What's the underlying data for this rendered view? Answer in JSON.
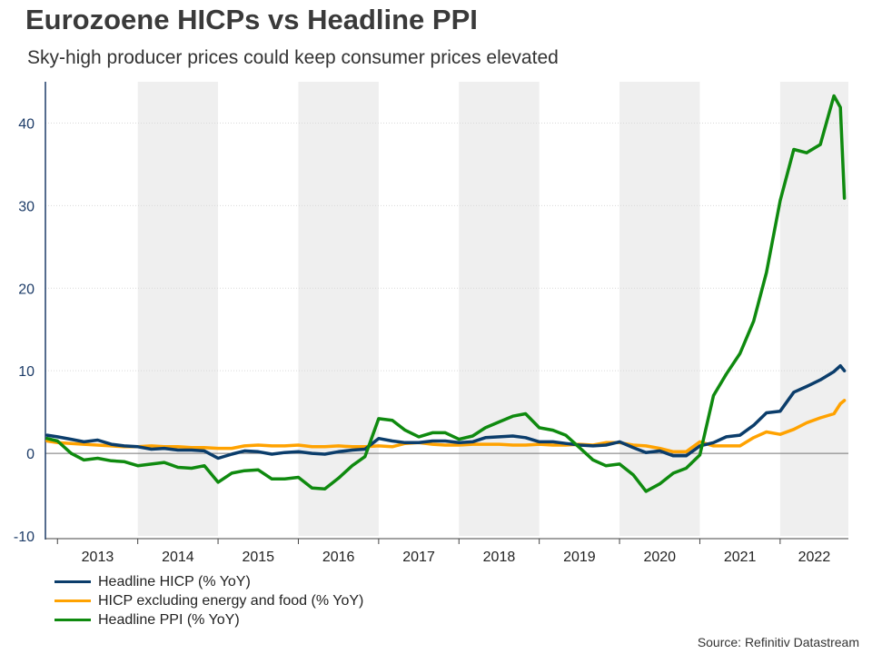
{
  "header": {
    "title": "Eurozoene HICPs vs Headline PPI",
    "subtitle": "Sky-high producer prices could keep consumer prices elevated"
  },
  "source": "Source: Refinitiv Datastream",
  "colors": {
    "headline_hicp": "#0b3d6b",
    "core_hicp": "#ffa200",
    "ppi": "#0f8a0f",
    "band": "#efefef",
    "axis_text": "#1d3c68",
    "grid": "#d9d9d9"
  },
  "chart_data": {
    "type": "line",
    "title": "Eurozoene HICPs vs Headline PPI",
    "xlabel": "",
    "ylabel": "",
    "x_range": [
      2012.85,
      2022.85
    ],
    "ylim": [
      -10,
      45
    ],
    "yticks": [
      -10,
      0,
      10,
      20,
      30,
      40
    ],
    "ytick_labels": [
      "-10",
      "0",
      "10",
      "20",
      "30",
      "40"
    ],
    "year_labels": [
      "2013",
      "2014",
      "2015",
      "2016",
      "2017",
      "2018",
      "2019",
      "2020",
      "2021",
      "2022"
    ],
    "shaded_years": [
      2014,
      2016,
      2018,
      2020,
      2022
    ],
    "grid": true,
    "legend_position": "bottom-left",
    "series": [
      {
        "name": "Headline HICP (% YoY)",
        "key": "headline_hicp",
        "x": [
          2012.87,
          2013.0,
          2013.17,
          2013.33,
          2013.5,
          2013.67,
          2013.83,
          2014.0,
          2014.17,
          2014.33,
          2014.5,
          2014.67,
          2014.83,
          2015.0,
          2015.17,
          2015.33,
          2015.5,
          2015.67,
          2015.83,
          2016.0,
          2016.17,
          2016.33,
          2016.5,
          2016.67,
          2016.83,
          2017.0,
          2017.17,
          2017.33,
          2017.5,
          2017.67,
          2017.83,
          2018.0,
          2018.17,
          2018.33,
          2018.5,
          2018.67,
          2018.83,
          2019.0,
          2019.17,
          2019.33,
          2019.5,
          2019.67,
          2019.83,
          2020.0,
          2020.17,
          2020.33,
          2020.5,
          2020.67,
          2020.83,
          2021.0,
          2021.17,
          2021.33,
          2021.5,
          2021.67,
          2021.83,
          2022.0,
          2022.17,
          2022.33,
          2022.5,
          2022.67,
          2022.75,
          2022.8
        ],
        "values": [
          2.2,
          2.0,
          1.7,
          1.4,
          1.6,
          1.1,
          0.9,
          0.8,
          0.5,
          0.6,
          0.4,
          0.4,
          0.3,
          -0.6,
          -0.1,
          0.3,
          0.2,
          -0.1,
          0.1,
          0.2,
          0.0,
          -0.1,
          0.2,
          0.4,
          0.5,
          1.8,
          1.5,
          1.3,
          1.3,
          1.5,
          1.5,
          1.3,
          1.4,
          1.9,
          2.0,
          2.1,
          1.9,
          1.4,
          1.4,
          1.2,
          1.0,
          0.9,
          1.0,
          1.4,
          0.7,
          0.1,
          0.3,
          -0.3,
          -0.3,
          0.9,
          1.3,
          2.0,
          2.2,
          3.4,
          4.9,
          5.1,
          7.4,
          8.1,
          8.9,
          9.9,
          10.6,
          10.0
        ]
      },
      {
        "name": "HICP excluding energy and food (% YoY)",
        "key": "core_hicp",
        "x": [
          2012.87,
          2013.0,
          2013.17,
          2013.33,
          2013.5,
          2013.67,
          2013.83,
          2014.0,
          2014.17,
          2014.33,
          2014.5,
          2014.67,
          2014.83,
          2015.0,
          2015.17,
          2015.33,
          2015.5,
          2015.67,
          2015.83,
          2016.0,
          2016.17,
          2016.33,
          2016.5,
          2016.67,
          2016.83,
          2017.0,
          2017.17,
          2017.33,
          2017.5,
          2017.67,
          2017.83,
          2018.0,
          2018.17,
          2018.33,
          2018.5,
          2018.67,
          2018.83,
          2019.0,
          2019.17,
          2019.33,
          2019.5,
          2019.67,
          2019.83,
          2020.0,
          2020.17,
          2020.33,
          2020.5,
          2020.67,
          2020.83,
          2021.0,
          2021.17,
          2021.33,
          2021.5,
          2021.67,
          2021.83,
          2022.0,
          2022.17,
          2022.33,
          2022.5,
          2022.67,
          2022.75,
          2022.8
        ],
        "values": [
          1.5,
          1.3,
          1.2,
          1.1,
          1.0,
          0.9,
          0.8,
          0.8,
          0.9,
          0.8,
          0.8,
          0.7,
          0.7,
          0.6,
          0.6,
          0.9,
          1.0,
          0.9,
          0.9,
          1.0,
          0.8,
          0.8,
          0.9,
          0.8,
          0.8,
          0.9,
          0.8,
          1.2,
          1.3,
          1.1,
          1.0,
          1.0,
          1.1,
          1.1,
          1.1,
          1.0,
          1.0,
          1.1,
          1.0,
          1.0,
          1.1,
          1.0,
          1.3,
          1.3,
          1.0,
          0.9,
          0.6,
          0.2,
          0.2,
          1.4,
          0.9,
          0.9,
          0.9,
          1.9,
          2.6,
          2.3,
          2.9,
          3.7,
          4.3,
          4.8,
          6.0,
          6.4
        ]
      },
      {
        "name": "Headline PPI (% YoY)",
        "key": "ppi",
        "x": [
          2012.87,
          2013.0,
          2013.17,
          2013.33,
          2013.5,
          2013.67,
          2013.83,
          2014.0,
          2014.17,
          2014.33,
          2014.5,
          2014.67,
          2014.83,
          2015.0,
          2015.17,
          2015.33,
          2015.5,
          2015.67,
          2015.83,
          2016.0,
          2016.17,
          2016.33,
          2016.5,
          2016.67,
          2016.83,
          2017.0,
          2017.17,
          2017.33,
          2017.5,
          2017.67,
          2017.83,
          2018.0,
          2018.17,
          2018.33,
          2018.5,
          2018.67,
          2018.83,
          2019.0,
          2019.17,
          2019.33,
          2019.5,
          2019.67,
          2019.83,
          2020.0,
          2020.17,
          2020.33,
          2020.5,
          2020.67,
          2020.83,
          2021.0,
          2021.17,
          2021.33,
          2021.5,
          2021.67,
          2021.83,
          2022.0,
          2022.17,
          2022.33,
          2022.5,
          2022.67,
          2022.75,
          2022.8
        ],
        "values": [
          1.8,
          1.5,
          0.0,
          -0.8,
          -0.6,
          -0.9,
          -1.0,
          -1.5,
          -1.3,
          -1.1,
          -1.7,
          -1.8,
          -1.5,
          -3.5,
          -2.4,
          -2.1,
          -2.0,
          -3.1,
          -3.1,
          -2.9,
          -4.2,
          -4.3,
          -3.0,
          -1.5,
          -0.4,
          4.2,
          4.0,
          2.8,
          2.0,
          2.5,
          2.5,
          1.7,
          2.1,
          3.1,
          3.8,
          4.5,
          4.8,
          3.1,
          2.8,
          2.2,
          0.7,
          -0.8,
          -1.5,
          -1.3,
          -2.6,
          -4.6,
          -3.7,
          -2.4,
          -1.8,
          -0.2,
          7.0,
          9.6,
          12.1,
          16.0,
          21.9,
          30.6,
          36.8,
          36.4,
          37.4,
          43.3,
          41.9,
          30.9
        ]
      }
    ]
  }
}
